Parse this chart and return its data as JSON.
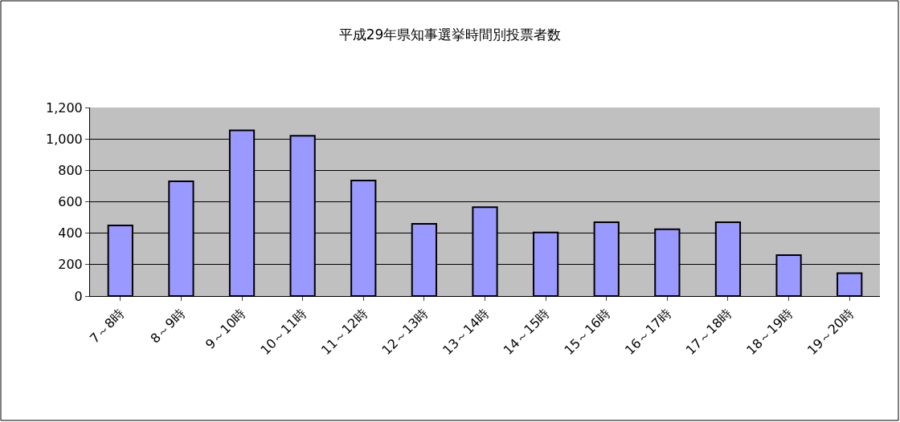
{
  "chart_data": {
    "type": "bar",
    "title": "平成29年県知事選挙時間別投票者数",
    "categories": [
      "7～8時",
      "8～9時",
      "9～10時",
      "10～11時",
      "11～12時",
      "12～13時",
      "13～14時",
      "14～15時",
      "15～16時",
      "16～17時",
      "17～18時",
      "18～19時",
      "19～20時"
    ],
    "values": [
      450,
      730,
      1055,
      1020,
      735,
      460,
      565,
      405,
      470,
      425,
      470,
      260,
      145
    ],
    "color": "#9999ff",
    "ylim": [
      0,
      1200
    ],
    "yticks": [
      {
        "value": 0,
        "label": "0"
      },
      {
        "value": 200,
        "label": "200"
      },
      {
        "value": 400,
        "label": "400"
      },
      {
        "value": 600,
        "label": "600"
      },
      {
        "value": 800,
        "label": "800"
      },
      {
        "value": 1000,
        "label": "1,000"
      },
      {
        "value": 1200,
        "label": "1,200"
      }
    ],
    "grid": "y"
  }
}
